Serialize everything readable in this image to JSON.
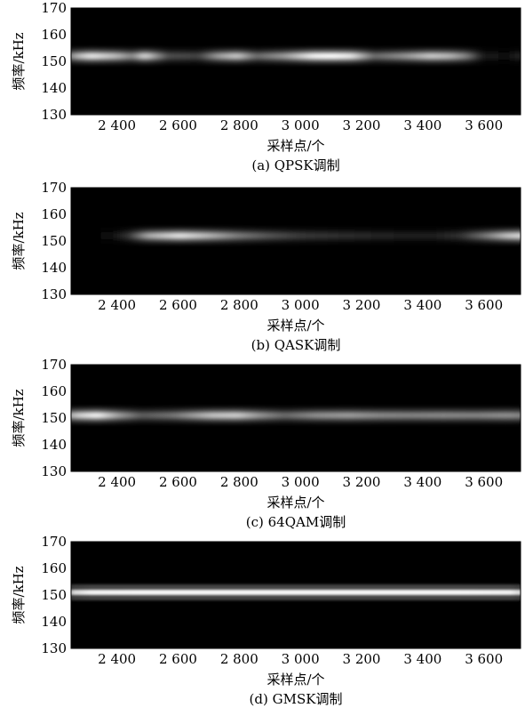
{
  "chart_data": [
    {
      "type": "heatmap",
      "caption": "(a)  QPSK调制",
      "xlabel": "采样点/个",
      "ylabel": "频率/kHz",
      "xlim": [
        2250,
        3720
      ],
      "ylim": [
        130,
        170
      ],
      "xticks": [
        2400,
        2600,
        2800,
        3000,
        3200,
        3400,
        3600
      ],
      "xtick_labels": [
        "2 400",
        "2 600",
        "2 800",
        "3 000",
        "3 200",
        "3 400",
        "3 600"
      ],
      "yticks": [
        130,
        140,
        150,
        160,
        170
      ],
      "ytick_labels": [
        "130",
        "140",
        "150",
        "160",
        "170"
      ],
      "colormap": "gray",
      "ridge_freq": 152,
      "intensity_profile": [
        {
          "x": 2250,
          "v": 0.2
        },
        {
          "x": 2290,
          "v": 0.65
        },
        {
          "x": 2340,
          "v": 0.9
        },
        {
          "x": 2420,
          "v": 0.72
        },
        {
          "x": 2470,
          "v": 0.5
        },
        {
          "x": 2510,
          "v": 0.85
        },
        {
          "x": 2580,
          "v": 0.3
        },
        {
          "x": 2680,
          "v": 0.25
        },
        {
          "x": 2740,
          "v": 0.6
        },
        {
          "x": 2800,
          "v": 0.78
        },
        {
          "x": 2860,
          "v": 0.4
        },
        {
          "x": 2950,
          "v": 0.6
        },
        {
          "x": 3040,
          "v": 0.95
        },
        {
          "x": 3100,
          "v": 0.98
        },
        {
          "x": 3160,
          "v": 0.9
        },
        {
          "x": 3230,
          "v": 0.4
        },
        {
          "x": 3320,
          "v": 0.55
        },
        {
          "x": 3410,
          "v": 0.78
        },
        {
          "x": 3470,
          "v": 0.7
        },
        {
          "x": 3520,
          "v": 0.5
        },
        {
          "x": 3570,
          "v": 0.1
        },
        {
          "x": 3650,
          "v": 0.05
        },
        {
          "x": 3700,
          "v": 0.15
        },
        {
          "x": 3720,
          "v": 0.1
        }
      ]
    },
    {
      "type": "heatmap",
      "caption": "(b)  QASK调制",
      "xlabel": "采样点/个",
      "ylabel": "频率/kHz",
      "xlim": [
        2250,
        3720
      ],
      "ylim": [
        130,
        170
      ],
      "xticks": [
        2400,
        2600,
        2800,
        3000,
        3200,
        3400,
        3600
      ],
      "xtick_labels": [
        "2 400",
        "2 600",
        "2 800",
        "3 000",
        "3 200",
        "3 400",
        "3 600"
      ],
      "yticks": [
        130,
        140,
        150,
        160,
        170
      ],
      "ytick_labels": [
        "130",
        "140",
        "150",
        "160",
        "170"
      ],
      "colormap": "gray",
      "ridge_freq": 152,
      "intensity_profile": [
        {
          "x": 2250,
          "v": 0.0
        },
        {
          "x": 2400,
          "v": 0.03
        },
        {
          "x": 2460,
          "v": 0.2
        },
        {
          "x": 2520,
          "v": 0.65
        },
        {
          "x": 2620,
          "v": 0.88
        },
        {
          "x": 2700,
          "v": 0.72
        },
        {
          "x": 2800,
          "v": 0.48
        },
        {
          "x": 2900,
          "v": 0.32
        },
        {
          "x": 3000,
          "v": 0.22
        },
        {
          "x": 3100,
          "v": 0.18
        },
        {
          "x": 3200,
          "v": 0.15
        },
        {
          "x": 3300,
          "v": 0.12
        },
        {
          "x": 3400,
          "v": 0.1
        },
        {
          "x": 3500,
          "v": 0.18
        },
        {
          "x": 3580,
          "v": 0.45
        },
        {
          "x": 3650,
          "v": 0.75
        },
        {
          "x": 3700,
          "v": 0.85
        },
        {
          "x": 3720,
          "v": 0.55
        }
      ]
    },
    {
      "type": "heatmap",
      "caption": "(c)  64QAM调制",
      "xlabel": "采样点/个",
      "ylabel": "频率/kHz",
      "xlim": [
        2250,
        3720
      ],
      "ylim": [
        130,
        170
      ],
      "xticks": [
        2400,
        2600,
        2800,
        3000,
        3200,
        3400,
        3600
      ],
      "xtick_labels": [
        "2 400",
        "2 600",
        "2 800",
        "3 000",
        "3 200",
        "3 400",
        "3 600"
      ],
      "yticks": [
        130,
        140,
        150,
        160,
        170
      ],
      "ytick_labels": [
        "130",
        "140",
        "150",
        "160",
        "170"
      ],
      "colormap": "gray",
      "ridge_freq": 151,
      "intensity_profile": [
        {
          "x": 2250,
          "v": 0.5
        },
        {
          "x": 2300,
          "v": 0.8
        },
        {
          "x": 2360,
          "v": 0.95
        },
        {
          "x": 2430,
          "v": 0.6
        },
        {
          "x": 2500,
          "v": 0.35
        },
        {
          "x": 2600,
          "v": 0.45
        },
        {
          "x": 2720,
          "v": 0.75
        },
        {
          "x": 2800,
          "v": 0.8
        },
        {
          "x": 2880,
          "v": 0.55
        },
        {
          "x": 2950,
          "v": 0.4
        },
        {
          "x": 3050,
          "v": 0.55
        },
        {
          "x": 3150,
          "v": 0.6
        },
        {
          "x": 3250,
          "v": 0.52
        },
        {
          "x": 3350,
          "v": 0.5
        },
        {
          "x": 3450,
          "v": 0.52
        },
        {
          "x": 3550,
          "v": 0.5
        },
        {
          "x": 3650,
          "v": 0.55
        },
        {
          "x": 3700,
          "v": 0.5
        },
        {
          "x": 3720,
          "v": 0.3
        }
      ]
    },
    {
      "type": "heatmap",
      "caption": "(d)  GMSK调制",
      "xlabel": "采样点/个",
      "ylabel": "频率/kHz",
      "xlim": [
        2250,
        3720
      ],
      "ylim": [
        130,
        170
      ],
      "xticks": [
        2400,
        2600,
        2800,
        3000,
        3200,
        3400,
        3600
      ],
      "xtick_labels": [
        "2 400",
        "2 600",
        "2 800",
        "3 000",
        "3 200",
        "3 400",
        "3 600"
      ],
      "yticks": [
        130,
        140,
        150,
        160,
        170
      ],
      "ytick_labels": [
        "130",
        "140",
        "150",
        "160",
        "170"
      ],
      "colormap": "gray",
      "ridge_freq": 151,
      "intensity_profile": [
        {
          "x": 2250,
          "v": 0.45
        },
        {
          "x": 2290,
          "v": 0.85
        },
        {
          "x": 2340,
          "v": 0.95
        },
        {
          "x": 2500,
          "v": 0.97
        },
        {
          "x": 3000,
          "v": 0.97
        },
        {
          "x": 3500,
          "v": 0.97
        },
        {
          "x": 3660,
          "v": 0.95
        },
        {
          "x": 3700,
          "v": 0.8
        },
        {
          "x": 3720,
          "v": 0.55
        }
      ]
    }
  ]
}
